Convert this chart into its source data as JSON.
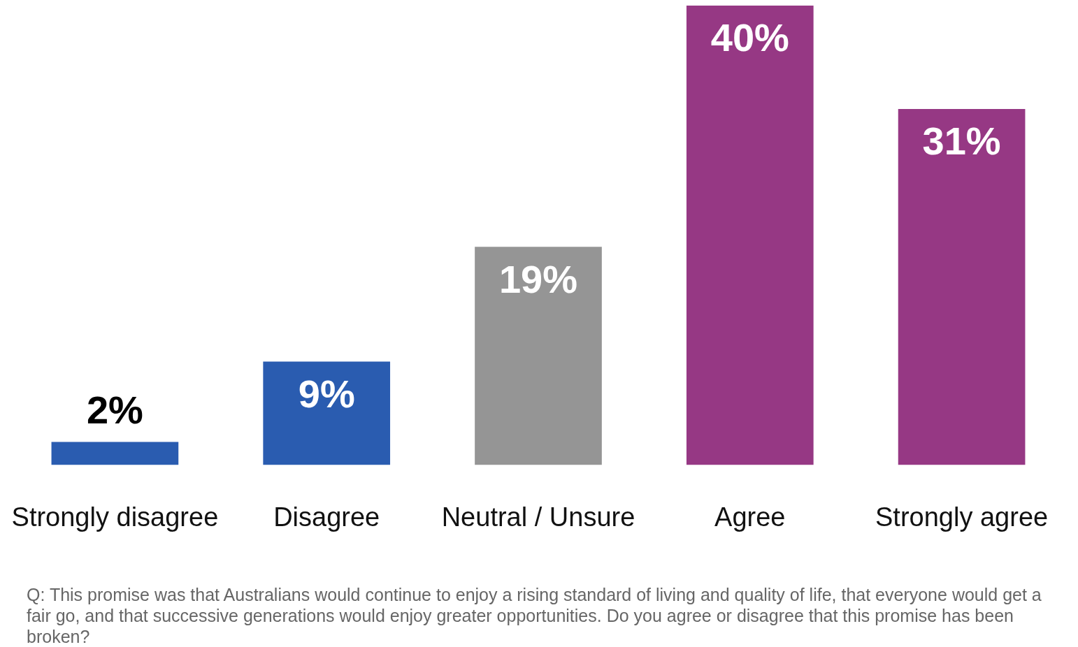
{
  "chart_data": {
    "type": "bar",
    "categories": [
      "Strongly disagree",
      "Disagree",
      "Neutral / Unsure",
      "Agree",
      "Strongly agree"
    ],
    "values": [
      2,
      9,
      19,
      40,
      31
    ],
    "value_labels": [
      "2%",
      "9%",
      "19%",
      "40%",
      "31%"
    ],
    "colors": [
      "#2a5cb0",
      "#2a5cb0",
      "#959595",
      "#963884",
      "#963884"
    ],
    "grid": false,
    "legend": false,
    "annotations": [
      "Q: This promise was that Australians would continue to enjoy a rising standard of living and quality of life, that everyone would get a fair go, and that successive generations would enjoy greater opportunities. Do you agree or disagree that this promise has been broken?"
    ]
  }
}
